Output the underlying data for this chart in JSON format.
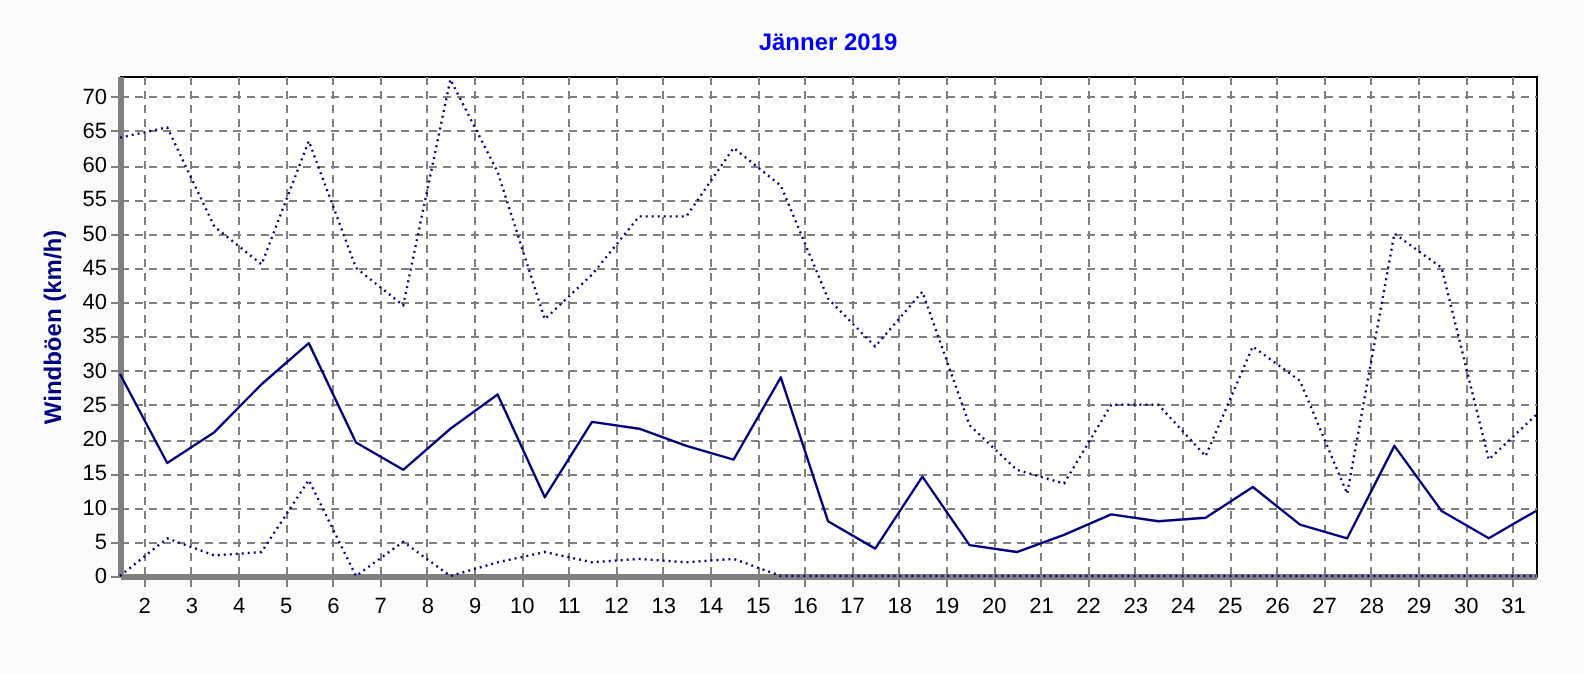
{
  "chart_data": {
    "type": "line",
    "title": "Jänner 2019",
    "ylabel": "Windböen (km/h)",
    "x": [
      1.5,
      2.5,
      3.5,
      4.5,
      5.5,
      6.5,
      7.5,
      8.5,
      9.5,
      10.5,
      11.5,
      12.5,
      13.5,
      14.5,
      15.5,
      16.5,
      17.5,
      18.5,
      19.5,
      20.5,
      21.5,
      22.5,
      23.5,
      24.5,
      25.5,
      26.5,
      27.5,
      28.5,
      29.5,
      30.5,
      31.5
    ],
    "xlim": [
      1.5,
      31.5
    ],
    "xticks": [
      2,
      3,
      4,
      5,
      6,
      7,
      8,
      9,
      10,
      11,
      12,
      13,
      14,
      15,
      16,
      17,
      18,
      19,
      20,
      21,
      22,
      23,
      24,
      25,
      26,
      27,
      28,
      29,
      30,
      31
    ],
    "ylim": [
      0,
      73
    ],
    "yticks": [
      0,
      5,
      10,
      15,
      20,
      25,
      30,
      35,
      40,
      45,
      50,
      55,
      60,
      65,
      70
    ],
    "grid": true,
    "marker": "none",
    "series": [
      {
        "color": "#000080",
        "line_style": "dotted",
        "values": [
          64,
          65.5,
          51,
          45.5,
          63.5,
          45,
          39.5,
          72.5,
          59,
          37.5,
          44,
          52.5,
          52.5,
          62.5,
          57,
          40.5,
          33.5,
          41.5,
          22,
          15.5,
          13.5,
          25,
          25,
          17.5,
          33.5,
          28.5,
          12,
          50,
          45,
          17,
          23.5
        ]
      },
      {
        "color": "#000080",
        "line_style": "solid",
        "values": [
          29.5,
          16.5,
          21,
          28,
          34,
          19.5,
          15.5,
          21.5,
          26.5,
          11.5,
          22.5,
          21.5,
          19,
          17,
          29,
          8,
          4,
          14.5,
          4.5,
          3.5,
          6,
          9,
          8,
          8.5,
          13,
          7.5,
          5.5,
          19,
          9.5,
          5.5,
          9.5
        ]
      },
      {
        "color": "#000080",
        "line_style": "dotted",
        "values": [
          0,
          5.5,
          3,
          3.5,
          14,
          0,
          5,
          0,
          2,
          3.5,
          2,
          2.5,
          2,
          2.5,
          0,
          0,
          0,
          0,
          0,
          0,
          0,
          0,
          0,
          0,
          0,
          0,
          0,
          0,
          0,
          0,
          0
        ]
      }
    ]
  }
}
